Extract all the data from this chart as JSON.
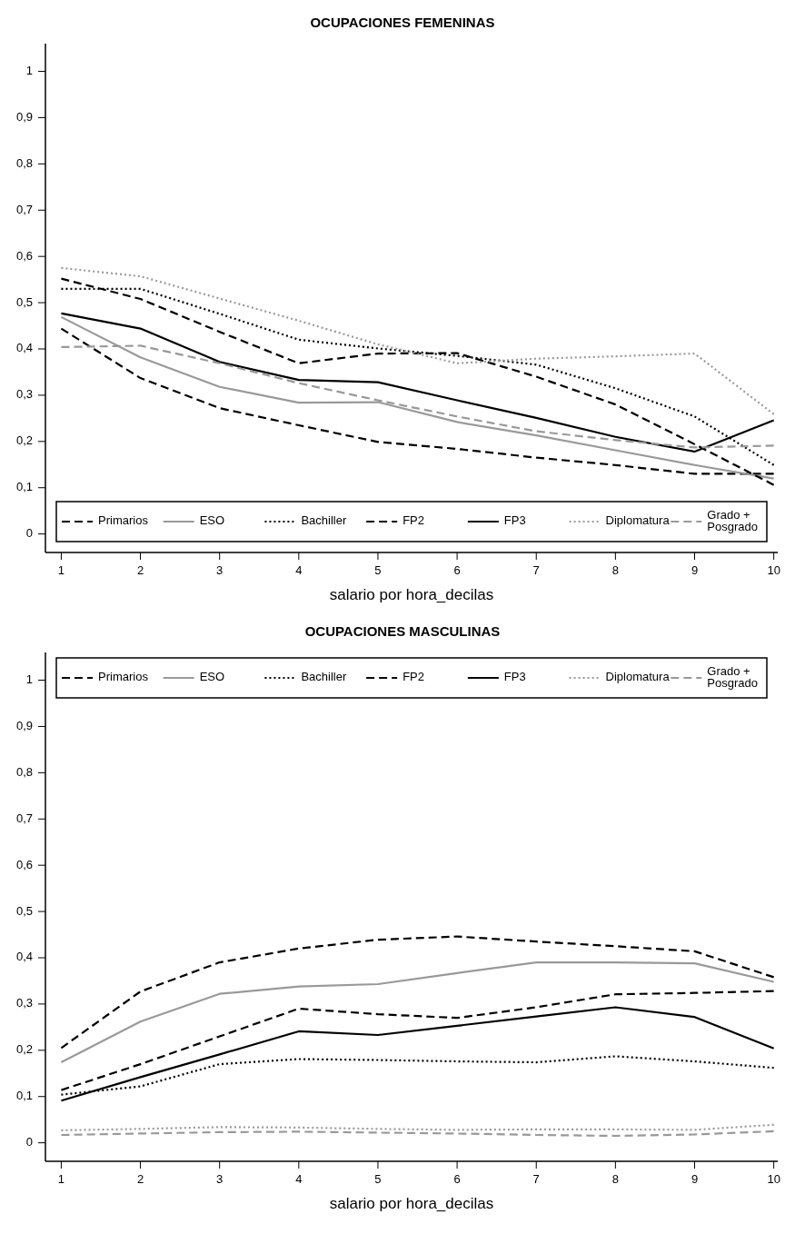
{
  "chart_data": [
    {
      "type": "line",
      "title": "OCUPACIONES FEMENINAS",
      "xlabel": "salario por hora_decilas",
      "x": [
        1,
        2,
        3,
        4,
        5,
        6,
        7,
        8,
        9,
        10
      ],
      "xlim": [
        0.8,
        10.05
      ],
      "xticks": [
        1,
        2,
        3,
        4,
        5,
        6,
        7,
        8,
        9,
        10
      ],
      "ylim": [
        -0.04,
        1.06
      ],
      "yticks": [
        {
          "value": 0,
          "label": "0"
        },
        {
          "value": 0.1,
          "label": "0,1"
        },
        {
          "value": 0.2,
          "label": "0,2"
        },
        {
          "value": 0.3,
          "label": "0,3"
        },
        {
          "value": 0.4,
          "label": "0,4"
        },
        {
          "value": 0.5,
          "label": "0,5"
        },
        {
          "value": 0.6,
          "label": "0,6"
        },
        {
          "value": 0.7,
          "label": "0,7"
        },
        {
          "value": 0.8,
          "label": "0,8"
        },
        {
          "value": 0.9,
          "label": "0,9"
        },
        {
          "value": 1,
          "label": "1"
        }
      ],
      "grid": false,
      "legend": "bottom",
      "marker": "none",
      "series": [
        {
          "name": "Primarios",
          "color": "#000000",
          "line_style": "dashed",
          "values": [
            0.444,
            0.337,
            0.272,
            0.235,
            0.199,
            0.184,
            0.165,
            0.149,
            0.13,
            0.13
          ]
        },
        {
          "name": "ESO",
          "color": "#999999",
          "line_style": "solid",
          "values": [
            0.469,
            0.382,
            0.318,
            0.284,
            0.285,
            0.242,
            0.213,
            0.181,
            0.149,
            0.12
          ]
        },
        {
          "name": "Bachiller",
          "color": "#000000",
          "line_style": "dotted",
          "values": [
            0.53,
            0.53,
            0.476,
            0.42,
            0.401,
            0.385,
            0.366,
            0.315,
            0.254,
            0.149
          ]
        },
        {
          "name": "FP2",
          "color": "#000000",
          "line_style": "dashed",
          "values": [
            0.552,
            0.508,
            0.437,
            0.369,
            0.39,
            0.391,
            0.34,
            0.28,
            0.194,
            0.106
          ]
        },
        {
          "name": "FP3",
          "color": "#000000",
          "line_style": "solid",
          "values": [
            0.477,
            0.444,
            0.372,
            0.333,
            0.328,
            0.289,
            0.251,
            0.21,
            0.178,
            0.246
          ]
        },
        {
          "name": "Diplomatura",
          "color": "#999999",
          "line_style": "dotted",
          "values": [
            0.575,
            0.557,
            0.509,
            0.461,
            0.41,
            0.369,
            0.379,
            0.384,
            0.39,
            0.259
          ]
        },
        {
          "name": "Grado + Posgrado",
          "color": "#999999",
          "line_style": "dashed",
          "values": [
            0.404,
            0.407,
            0.369,
            0.326,
            0.289,
            0.254,
            0.222,
            0.203,
            0.187,
            0.191
          ]
        }
      ]
    },
    {
      "type": "line",
      "title": "OCUPACIONES MASCULINAS",
      "xlabel": "salario por hora_decilas",
      "x": [
        1,
        2,
        3,
        4,
        5,
        6,
        7,
        8,
        9,
        10
      ],
      "xlim": [
        0.8,
        10.05
      ],
      "xticks": [
        1,
        2,
        3,
        4,
        5,
        6,
        7,
        8,
        9,
        10
      ],
      "ylim": [
        -0.04,
        1.06
      ],
      "yticks": [
        {
          "value": 0,
          "label": "0"
        },
        {
          "value": 0.1,
          "label": "0,1"
        },
        {
          "value": 0.2,
          "label": "0,2"
        },
        {
          "value": 0.3,
          "label": "0,3"
        },
        {
          "value": 0.4,
          "label": "0,4"
        },
        {
          "value": 0.5,
          "label": "0,5"
        },
        {
          "value": 0.6,
          "label": "0,6"
        },
        {
          "value": 0.7,
          "label": "0,7"
        },
        {
          "value": 0.8,
          "label": "0,8"
        },
        {
          "value": 0.9,
          "label": "0,9"
        },
        {
          "value": 1,
          "label": "1"
        }
      ],
      "grid": false,
      "legend": "top",
      "marker": "none",
      "series": [
        {
          "name": "Primarios",
          "color": "#000000",
          "line_style": "dashed",
          "values": [
            0.205,
            0.327,
            0.39,
            0.42,
            0.439,
            0.446,
            0.435,
            0.425,
            0.414,
            0.358
          ]
        },
        {
          "name": "ESO",
          "color": "#999999",
          "line_style": "solid",
          "values": [
            0.174,
            0.262,
            0.322,
            0.338,
            0.343,
            0.367,
            0.39,
            0.39,
            0.388,
            0.348
          ]
        },
        {
          "name": "Bachiller",
          "color": "#000000",
          "line_style": "dotted",
          "values": [
            0.104,
            0.122,
            0.17,
            0.181,
            0.179,
            0.176,
            0.174,
            0.187,
            0.176,
            0.162
          ]
        },
        {
          "name": "FP2",
          "color": "#000000",
          "line_style": "dashed",
          "values": [
            0.114,
            0.17,
            0.23,
            0.29,
            0.278,
            0.27,
            0.293,
            0.321,
            0.324,
            0.328
          ]
        },
        {
          "name": "FP3",
          "color": "#000000",
          "line_style": "solid",
          "values": [
            0.091,
            0.142,
            0.191,
            0.241,
            0.233,
            0.253,
            0.273,
            0.293,
            0.272,
            0.204
          ]
        },
        {
          "name": "Diplomatura",
          "color": "#999999",
          "line_style": "dotted",
          "values": [
            0.027,
            0.03,
            0.034,
            0.033,
            0.03,
            0.028,
            0.029,
            0.029,
            0.028,
            0.039
          ]
        },
        {
          "name": "Grado + Posgrado",
          "color": "#999999",
          "line_style": "dashed",
          "values": [
            0.017,
            0.02,
            0.023,
            0.024,
            0.022,
            0.02,
            0.017,
            0.015,
            0.018,
            0.025
          ]
        }
      ]
    }
  ]
}
